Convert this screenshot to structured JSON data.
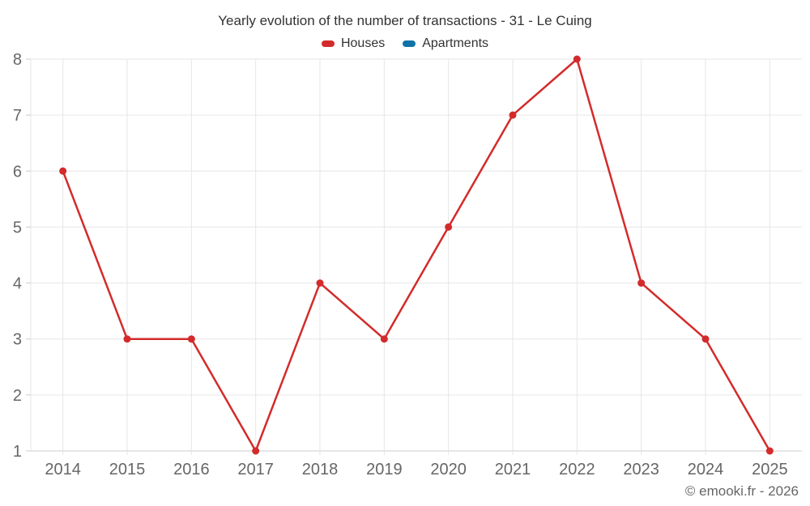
{
  "chart_data": {
    "type": "line",
    "title": "Yearly evolution of the number of transactions - 31 - Le Cuing",
    "categories": [
      "2014",
      "2015",
      "2016",
      "2017",
      "2018",
      "2019",
      "2020",
      "2021",
      "2022",
      "2023",
      "2024",
      "2025"
    ],
    "series": [
      {
        "name": "Houses",
        "color": "#d32b2b",
        "values": [
          6,
          3,
          3,
          1,
          4,
          3,
          5,
          7,
          8,
          4,
          3,
          1
        ]
      },
      {
        "name": "Apartments",
        "color": "#0e73a8",
        "values": []
      }
    ],
    "xlabel": "",
    "ylabel": "",
    "ylim": [
      1,
      8
    ],
    "yticks": [
      1,
      2,
      3,
      4,
      5,
      6,
      7,
      8
    ],
    "grid": true,
    "legend_position": "top"
  },
  "footer": {
    "credit": "© emooki.fr - 2026"
  },
  "theme": {
    "background": "#ffffff",
    "grid_color": "#e6e6e6",
    "axis_color": "#cccccc",
    "axis_label_color": "#666666",
    "title_color": "#333333",
    "legend_label_color": "#333333",
    "credit_color": "#666666"
  }
}
